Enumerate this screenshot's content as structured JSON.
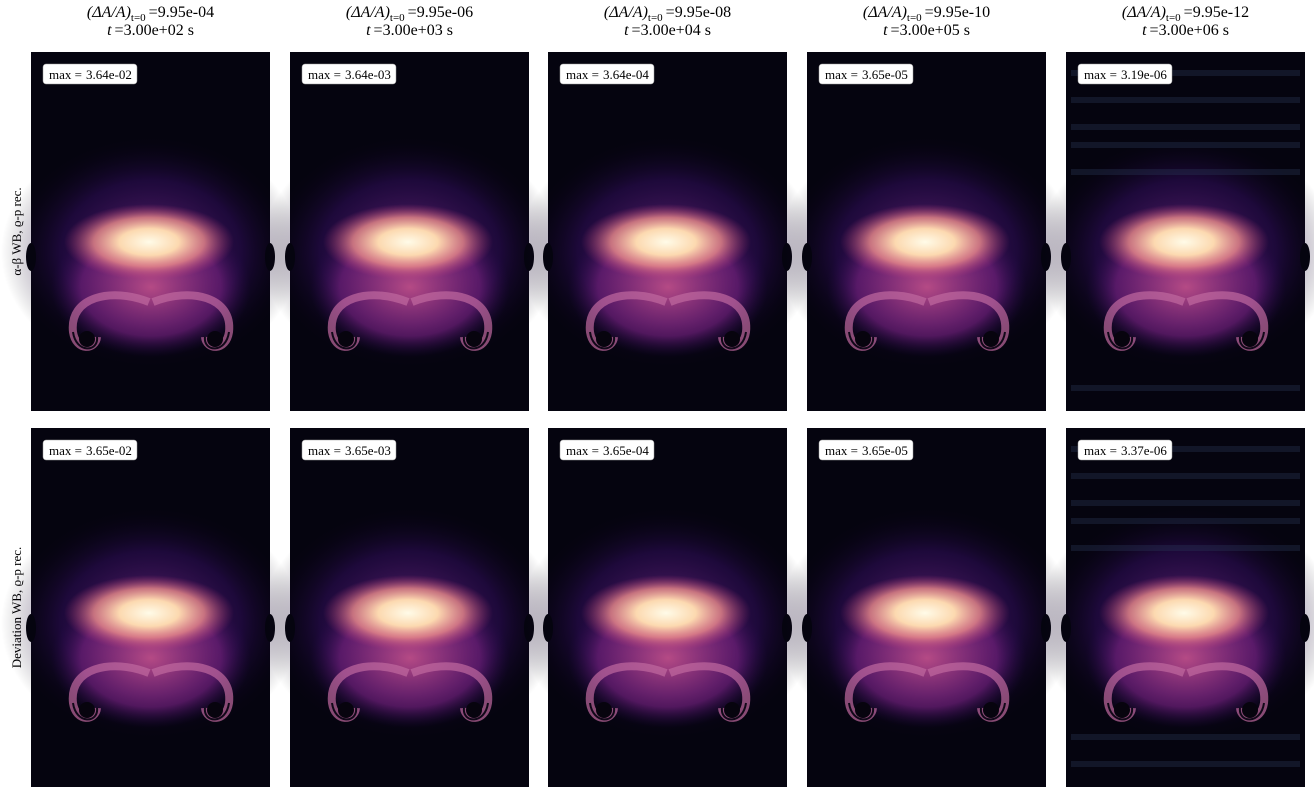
{
  "header": {
    "quantity": "(ΔA/A)",
    "subscript": "t=0",
    "equals": "=",
    "time_symbol": "t",
    "time_unit": "s"
  },
  "columns": [
    {
      "ratio": "9.95e-04",
      "time": "3.00e+02"
    },
    {
      "ratio": "9.95e-06",
      "time": "3.00e+03"
    },
    {
      "ratio": "9.95e-08",
      "time": "3.00e+04"
    },
    {
      "ratio": "9.95e-10",
      "time": "3.00e+05"
    },
    {
      "ratio": "9.95e-12",
      "time": "3.00e+06"
    }
  ],
  "max_prefix": "max =",
  "rows": [
    {
      "label": "α-β WB, ϱ-p rec.",
      "maxima": [
        "3.64e-02",
        "3.64e-03",
        "3.64e-04",
        "3.65e-05",
        "3.19e-06"
      ]
    },
    {
      "label": "Deviation WB, ϱ-p rec.",
      "maxima": [
        "3.65e-02",
        "3.65e-03",
        "3.65e-04",
        "3.65e-05",
        "3.37e-06"
      ]
    }
  ]
}
